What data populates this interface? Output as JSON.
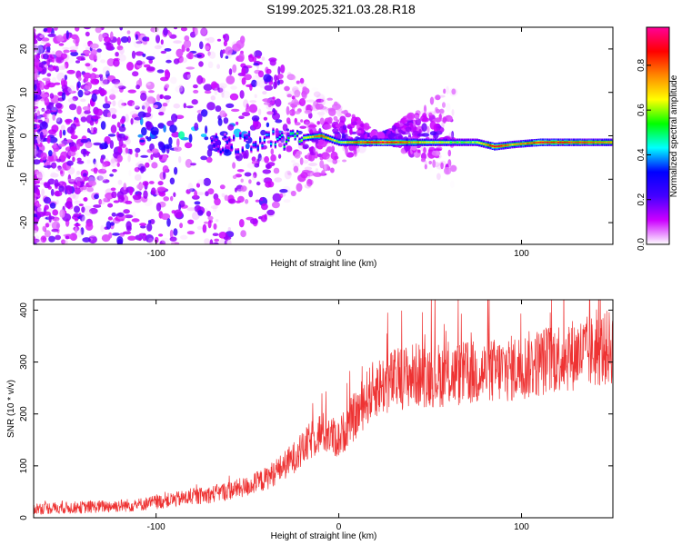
{
  "title": "S199.2025.321.03.28.R18",
  "chart_data": [
    {
      "type": "heatmap",
      "name": "spectrogram",
      "xlabel": "Height of straight line (km)",
      "ylabel": "Frequency (Hz)",
      "xlim": [
        -167,
        150
      ],
      "ylim": [
        -25,
        25
      ],
      "xticks": [
        -100,
        0,
        100
      ],
      "yticks": [
        -20,
        -10,
        0,
        10,
        20
      ],
      "colorbar": {
        "label": "Normalized spectral amplitude",
        "range": [
          0,
          0.97
        ],
        "ticks": [
          "0.0",
          "0.2",
          "0.4",
          "0.6",
          "0.8"
        ],
        "colors": [
          "#ffffff",
          "#cc00ff",
          "#4400ff",
          "#0000ff",
          "#00ffff",
          "#00ff00",
          "#ffff00",
          "#ff8800",
          "#ff0000",
          "#ff0099"
        ]
      },
      "ridge": {
        "x": [
          -60,
          -40,
          -30,
          -20,
          -10,
          0,
          10,
          25,
          40,
          60,
          75,
          85,
          95,
          110,
          130,
          150
        ],
        "freq": [
          -2,
          -1,
          -1,
          -0.5,
          0,
          -1.5,
          -1.5,
          -1.5,
          -1.5,
          -1.5,
          -1.5,
          -2.5,
          -2,
          -1.5,
          -1.5,
          -1.5
        ],
        "amplitude": [
          0.3,
          0.4,
          0.5,
          0.6,
          0.8,
          0.6,
          0.8,
          0.9,
          0.75,
          0.6,
          0.6,
          0.9,
          0.7,
          0.85,
          0.8,
          0.75
        ]
      }
    },
    {
      "type": "line",
      "name": "snr",
      "xlabel": "Height of straight line (km)",
      "ylabel": "SNR (10 * v/v)",
      "xlim": [
        -167,
        150
      ],
      "ylim": [
        0,
        420
      ],
      "xticks": [
        -100,
        0,
        100
      ],
      "yticks": [
        0,
        100,
        200,
        300,
        400
      ],
      "color": "#ee3333",
      "trend": {
        "x": [
          -167,
          -140,
          -110,
          -90,
          -70,
          -50,
          -40,
          -30,
          -20,
          -15,
          -10,
          -5,
          0,
          5,
          10,
          15,
          20,
          30,
          40,
          60,
          80,
          100,
          120,
          140,
          150
        ],
        "y": [
          18,
          20,
          25,
          35,
          45,
          60,
          75,
          100,
          130,
          150,
          165,
          160,
          150,
          180,
          200,
          230,
          250,
          265,
          275,
          275,
          280,
          290,
          310,
          320,
          330
        ]
      }
    }
  ]
}
